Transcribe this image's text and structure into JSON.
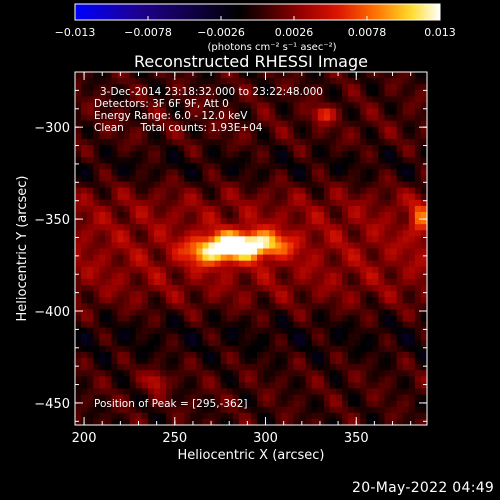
{
  "chart_data": {
    "type": "heatmap",
    "title": "Reconstructed RHESSI Image",
    "xlabel": "Heliocentric X (arcsec)",
    "ylabel": "Heliocentric Y (arcsec)",
    "xlim": [
      195,
      389
    ],
    "ylim": [
      -462,
      -270
    ],
    "xticks": [
      200,
      250,
      300,
      350
    ],
    "yticks": [
      -300,
      -350,
      -400,
      -450
    ],
    "xtick_labels": [
      "200",
      "250",
      "300",
      "350"
    ],
    "ytick_labels": [
      "−300",
      "−350",
      "−400",
      "−450"
    ],
    "colorbar": {
      "range": [
        -0.013,
        0.013
      ],
      "ticks": [
        -0.013,
        -0.0078,
        -0.0026,
        0.0026,
        0.0078,
        0.013
      ],
      "tick_labels": [
        "−0.013",
        "−0.0078",
        "−0.0026",
        "0.0026",
        "0.0078",
        "0.013"
      ],
      "unit_label": "(photons cm⁻² s⁻¹ asec⁻²)"
    },
    "annotations": [
      "3-Dec-2014 23:18:32.000 to 23:22:48.000",
      "Detectors: 3F 6F 9F, Att 0",
      "Energy Range: 6.0 - 12.0 keV",
      "Clean     Total counts: 1.93E+04",
      "Position of Peak = [295,-362]"
    ],
    "peak": {
      "x": 295,
      "y": -362,
      "value": 0.013
    },
    "sources": [
      {
        "x": 290,
        "y": -364,
        "amp": 0.0128,
        "sx": 14,
        "sy": 5
      },
      {
        "x": 270,
        "y": -368,
        "amp": 0.0075,
        "sx": 10,
        "sy": 5
      },
      {
        "x": 332,
        "y": -293,
        "amp": 0.006,
        "sx": 4,
        "sy": 3
      },
      {
        "x": 240,
        "y": -438,
        "amp": 0.0045,
        "sx": 4,
        "sy": 4
      },
      {
        "x": 385,
        "y": -350,
        "amp": 0.0045,
        "sx": 4,
        "sy": 8
      }
    ],
    "background_level": 0.0028
  },
  "footer": {
    "date": "20-May-2022 04:49"
  }
}
